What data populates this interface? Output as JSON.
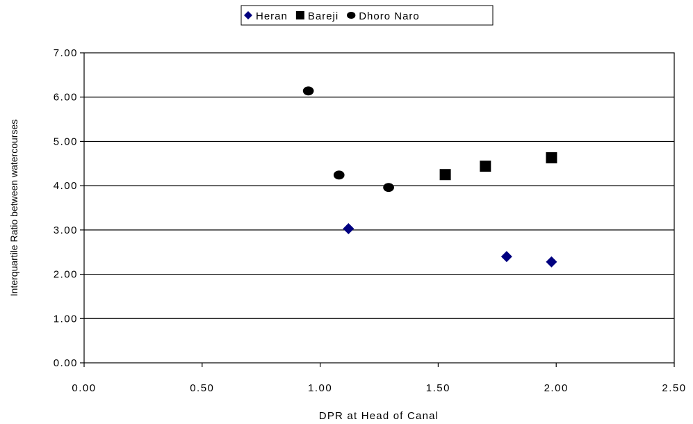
{
  "chart_data": {
    "type": "scatter",
    "title": "",
    "xlabel": "DPR at Head of Canal",
    "ylabel": "Interquartile Ratio between watercourses",
    "xlim": [
      0,
      2.5
    ],
    "ylim": [
      0,
      7
    ],
    "x_ticks": [
      "0.00",
      "0.50",
      "1.00",
      "1.50",
      "2.00",
      "2.50"
    ],
    "y_ticks": [
      "0.00",
      "1.00",
      "2.00",
      "3.00",
      "4.00",
      "5.00",
      "6.00",
      "7.00"
    ],
    "grid": "horizontal",
    "legend_position": "top-center",
    "series": [
      {
        "name": "Heran",
        "marker": "diamond",
        "color": "#000080",
        "points": [
          {
            "x": 1.12,
            "y": 3.03
          },
          {
            "x": 1.79,
            "y": 2.4
          },
          {
            "x": 1.98,
            "y": 2.28
          }
        ]
      },
      {
        "name": "Bareji",
        "marker": "square",
        "color": "#000000",
        "points": [
          {
            "x": 1.53,
            "y": 4.25
          },
          {
            "x": 1.7,
            "y": 4.44
          },
          {
            "x": 1.98,
            "y": 4.63
          }
        ]
      },
      {
        "name": "Dhoro Naro",
        "marker": "circle",
        "color": "#000000",
        "points": [
          {
            "x": 0.95,
            "y": 6.14
          },
          {
            "x": 1.08,
            "y": 4.24
          },
          {
            "x": 1.29,
            "y": 3.96
          }
        ]
      }
    ]
  }
}
